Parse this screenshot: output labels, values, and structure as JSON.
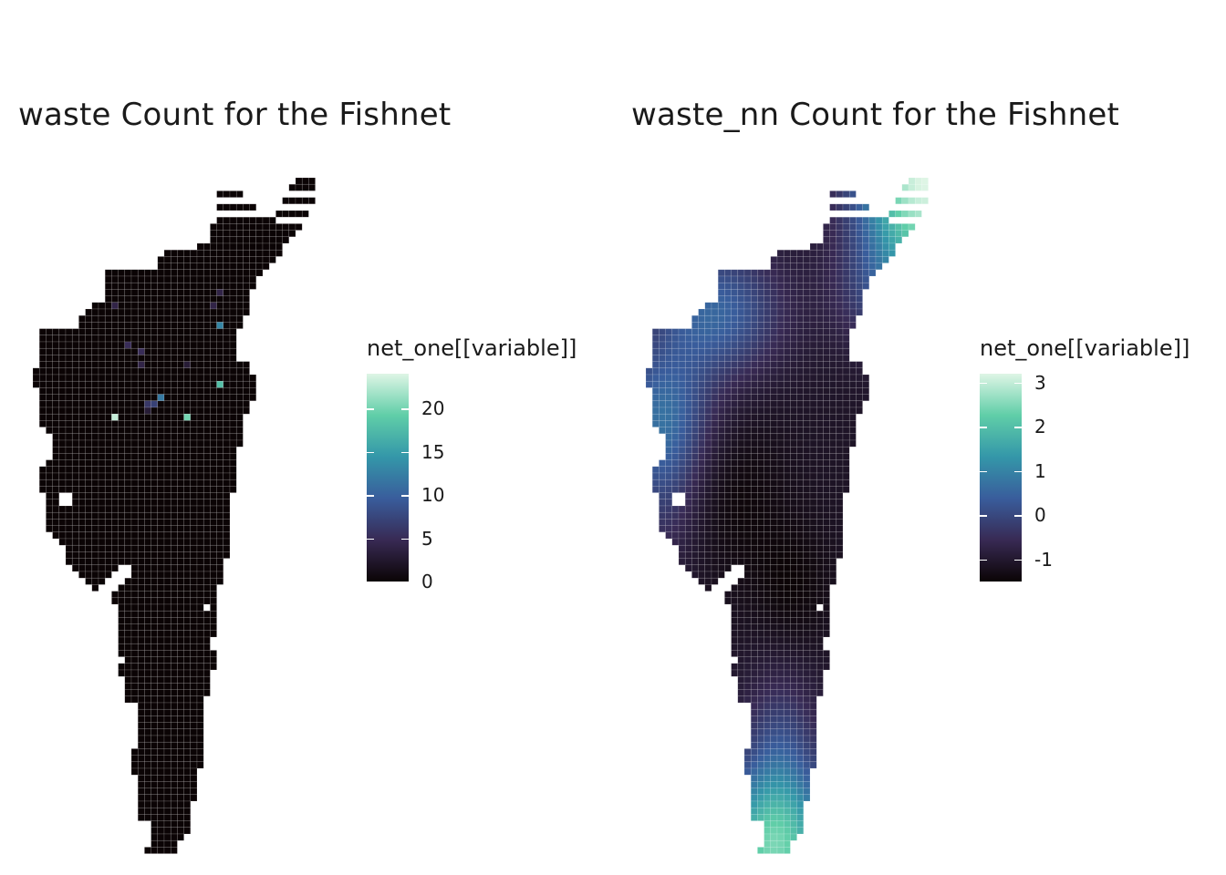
{
  "panels": [
    {
      "id": "waste",
      "title": "waste Count for the Fishnet",
      "legend": {
        "title": "net_one[[variable]]",
        "min": 0,
        "max": 24,
        "ticks": [
          0,
          5,
          10,
          15,
          20
        ],
        "colors": [
          "#0b0405",
          "#382a54",
          "#395d9c",
          "#3497a9",
          "#60cea8",
          "#def5e5"
        ]
      },
      "hotspots": [
        {
          "value": 23,
          "cell": [
            12,
            36
          ]
        },
        {
          "value": 20,
          "cell": [
            23,
            36
          ]
        },
        {
          "value": 18,
          "cell": [
            28,
            31
          ]
        },
        {
          "value": 13,
          "cell": [
            28,
            22
          ]
        },
        {
          "value": 12,
          "cell": [
            19,
            33
          ]
        },
        {
          "value": 7,
          "cell": [
            18,
            34
          ]
        },
        {
          "value": 6,
          "cell": [
            17,
            34
          ]
        },
        {
          "value": 5,
          "cell": [
            14,
            25
          ]
        },
        {
          "value": 5,
          "cell": [
            16,
            26
          ]
        },
        {
          "value": 4,
          "cell": [
            12,
            19
          ]
        },
        {
          "value": 4,
          "cell": [
            27,
            19
          ]
        },
        {
          "value": 4,
          "cell": [
            28,
            17
          ]
        },
        {
          "value": 4,
          "cell": [
            16,
            28
          ]
        },
        {
          "value": 3,
          "cell": [
            23,
            28
          ]
        },
        {
          "value": 3,
          "cell": [
            17,
            35
          ]
        }
      ]
    },
    {
      "id": "waste_nn",
      "title": "waste_nn Count for the Fishnet",
      "legend": {
        "title": "net_one[[variable]]",
        "min": -1.5,
        "max": 3.2,
        "ticks": [
          -1,
          0,
          1,
          2,
          3
        ],
        "colors": [
          "#0b0405",
          "#382a54",
          "#395d9c",
          "#3497a9",
          "#60cea8",
          "#def5e5"
        ]
      }
    }
  ]
}
